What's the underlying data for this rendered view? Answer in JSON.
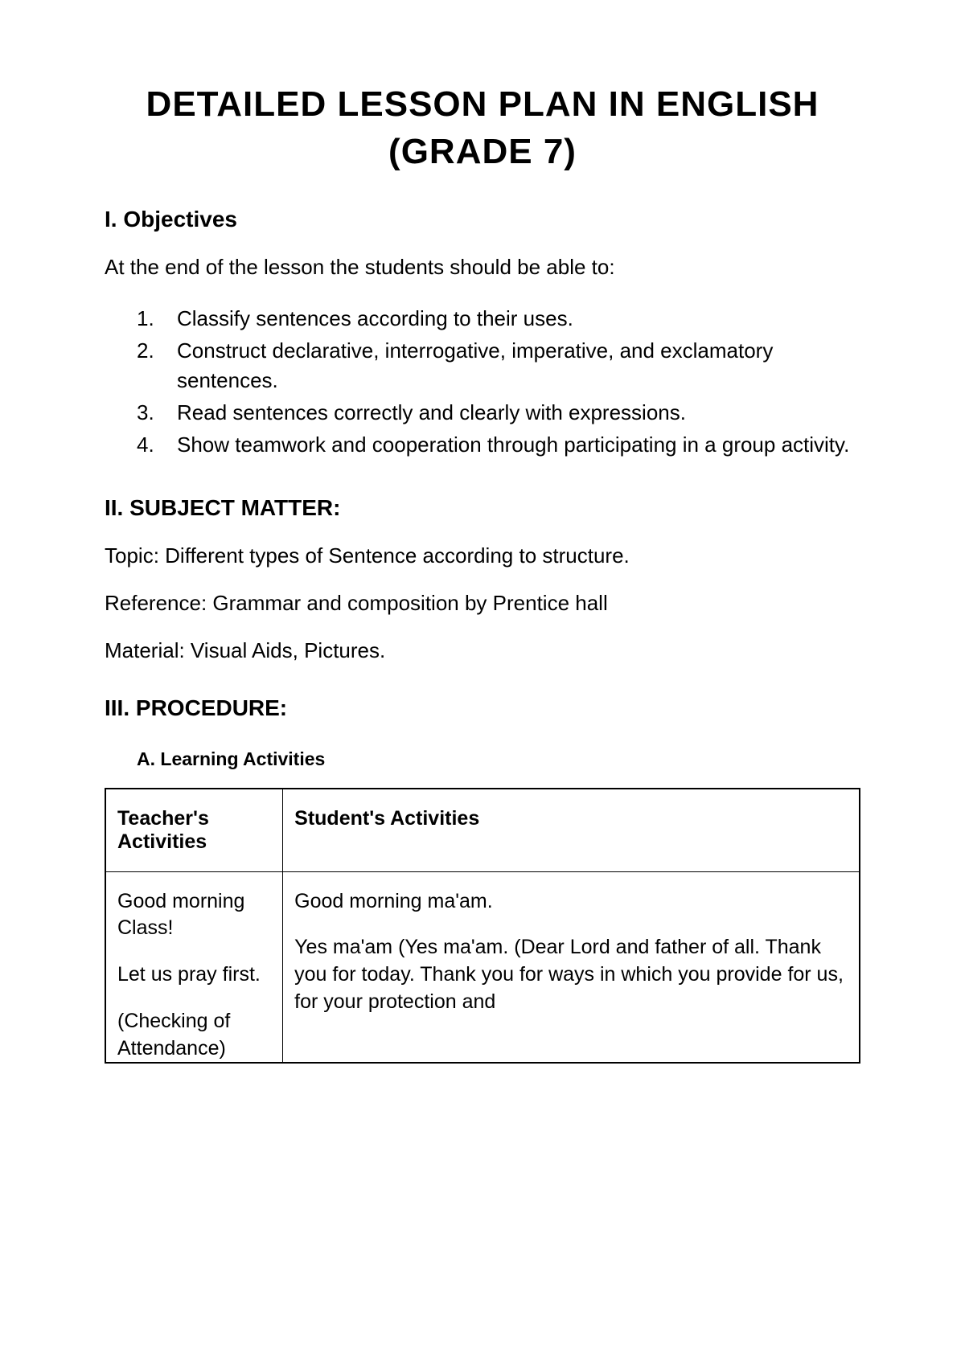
{
  "title": "DETAILED LESSON PLAN IN ENGLISH (GRADE 7)",
  "sections": {
    "objectives": {
      "heading": "I. Objectives",
      "intro": "At the end of the lesson the students should be able to:",
      "items": [
        "Classify sentences according to their uses.",
        "Construct declarative, interrogative, imperative, and exclamatory sentences.",
        "Read sentences correctly and clearly with expressions.",
        "Show teamwork and cooperation through participating in a group activity."
      ]
    },
    "subject_matter": {
      "heading": "II. SUBJECT MATTER:",
      "topic": "Topic: Different types of Sentence according to structure.",
      "reference": "Reference: Grammar and composition by Prentice hall",
      "material": "Material: Visual Aids, Pictures."
    },
    "procedure": {
      "heading": "III. PROCEDURE:",
      "subsection": "A.  Learning Activities",
      "table": {
        "columns": [
          "Teacher's  Activities",
          "Student's Activities"
        ],
        "teacher_lines": [
          "Good morning Class!",
          "Let us pray first.",
          "(Checking of Attendance)"
        ],
        "student_lines": [
          "Good morning ma'am.",
          "Yes ma'am (Yes ma'am. (Dear Lord and father of all. Thank you for today. Thank you for ways in which you provide for us, for your protection and"
        ]
      }
    }
  }
}
